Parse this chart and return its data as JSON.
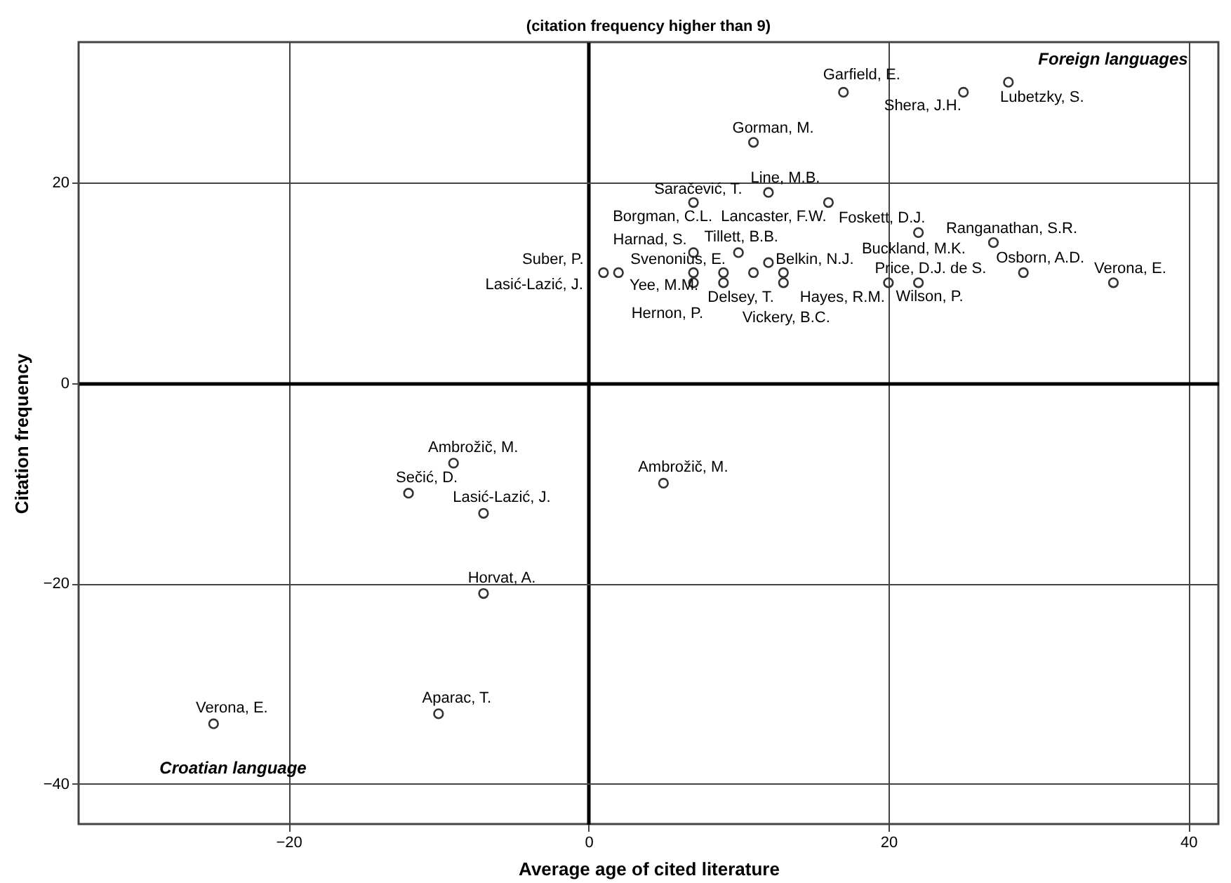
{
  "chart_data": {
    "type": "scatter",
    "title": "(citation frequency higher  than 9)",
    "xlabel": "Average age of cited literature",
    "ylabel": "Citation frequency",
    "xlim": [
      -34,
      42
    ],
    "ylim": [
      -44,
      34
    ],
    "xticks": [
      -20,
      0,
      20,
      40
    ],
    "yticks": [
      -40,
      -20,
      0,
      20
    ],
    "grid": true,
    "marker": "circle",
    "series": [
      {
        "color": "#333333",
        "x": [
          17,
          25,
          28,
          11,
          12,
          7,
          16,
          22,
          27,
          7,
          10,
          12,
          20,
          22,
          29,
          35,
          1,
          2,
          7,
          7,
          9,
          9,
          11,
          13,
          13,
          -9,
          -12,
          -7,
          5,
          -7,
          -10,
          -25
        ],
        "values": [
          29,
          29,
          30,
          24,
          19,
          18,
          18,
          15,
          14,
          13,
          13,
          12,
          10,
          10,
          11,
          10,
          11,
          11,
          11,
          10,
          11,
          10,
          11,
          11,
          10,
          -8,
          -11,
          -13,
          -10,
          -21,
          -33,
          -34
        ]
      }
    ],
    "annotations": [
      {
        "text": "Garfield, E.",
        "x": 17,
        "y": 29
      },
      {
        "text": "Shera, J.H.",
        "x": 25,
        "y": 29
      },
      {
        "text": "Lubetzky, S.",
        "x": 28,
        "y": 30
      },
      {
        "text": "Gorman, M.",
        "x": 11,
        "y": 24
      },
      {
        "text": "Line, M.B.",
        "x": 12,
        "y": 19
      },
      {
        "text": "Saračević, T.",
        "x": 12,
        "y": 19
      },
      {
        "text": "Borgman, C.L.",
        "x": 7,
        "y": 18
      },
      {
        "text": "Lancaster, F.W.",
        "x": 16,
        "y": 18
      },
      {
        "text": "Foskett, D.J.",
        "x": 22,
        "y": 15
      },
      {
        "text": "Ranganathan, S.R.",
        "x": 27,
        "y": 14
      },
      {
        "text": "Harnad, S.",
        "x": 7,
        "y": 13
      },
      {
        "text": "Tillett, B.B.",
        "x": 10,
        "y": 13
      },
      {
        "text": "Belkin, N.J.",
        "x": 12,
        "y": 12
      },
      {
        "text": "Buckland, M.K.",
        "x": 20,
        "y": 10
      },
      {
        "text": "Price, D.J. de S.",
        "x": 20,
        "y": 10
      },
      {
        "text": "Wilson, P.",
        "x": 22,
        "y": 10
      },
      {
        "text": "Osborn, A.D.",
        "x": 29,
        "y": 11
      },
      {
        "text": "Verona, E.",
        "x": 35,
        "y": 10
      },
      {
        "text": "Suber, P.",
        "x": 1,
        "y": 11
      },
      {
        "text": "Lasić-Lazić, J.",
        "x": 2,
        "y": 11
      },
      {
        "text": "Svenonius, E.",
        "x": 7,
        "y": 11
      },
      {
        "text": "Yee, M.M.",
        "x": 7,
        "y": 10
      },
      {
        "text": "Hernon, P.",
        "x": 9,
        "y": 10
      },
      {
        "text": "Delsey, T.",
        "x": 11,
        "y": 11
      },
      {
        "text": "Hayes, R.M.",
        "x": 13,
        "y": 11
      },
      {
        "text": "Vickery, B.C.",
        "x": 13,
        "y": 10
      },
      {
        "text": "Ambrožič, M.",
        "x": -9,
        "y": -8
      },
      {
        "text": "Sečić, D.",
        "x": -12,
        "y": -11
      },
      {
        "text": "Lasić-Lazić, J.",
        "x": -7,
        "y": -13
      },
      {
        "text": "Ambrožič, M.",
        "x": 5,
        "y": -10
      },
      {
        "text": "Horvat, A.",
        "x": -7,
        "y": -21
      },
      {
        "text": "Aparac, T.",
        "x": -10,
        "y": -33
      },
      {
        "text": "Verona, E.",
        "x": -25,
        "y": -34
      },
      "Foreign languages",
      "Croatian language"
    ]
  }
}
